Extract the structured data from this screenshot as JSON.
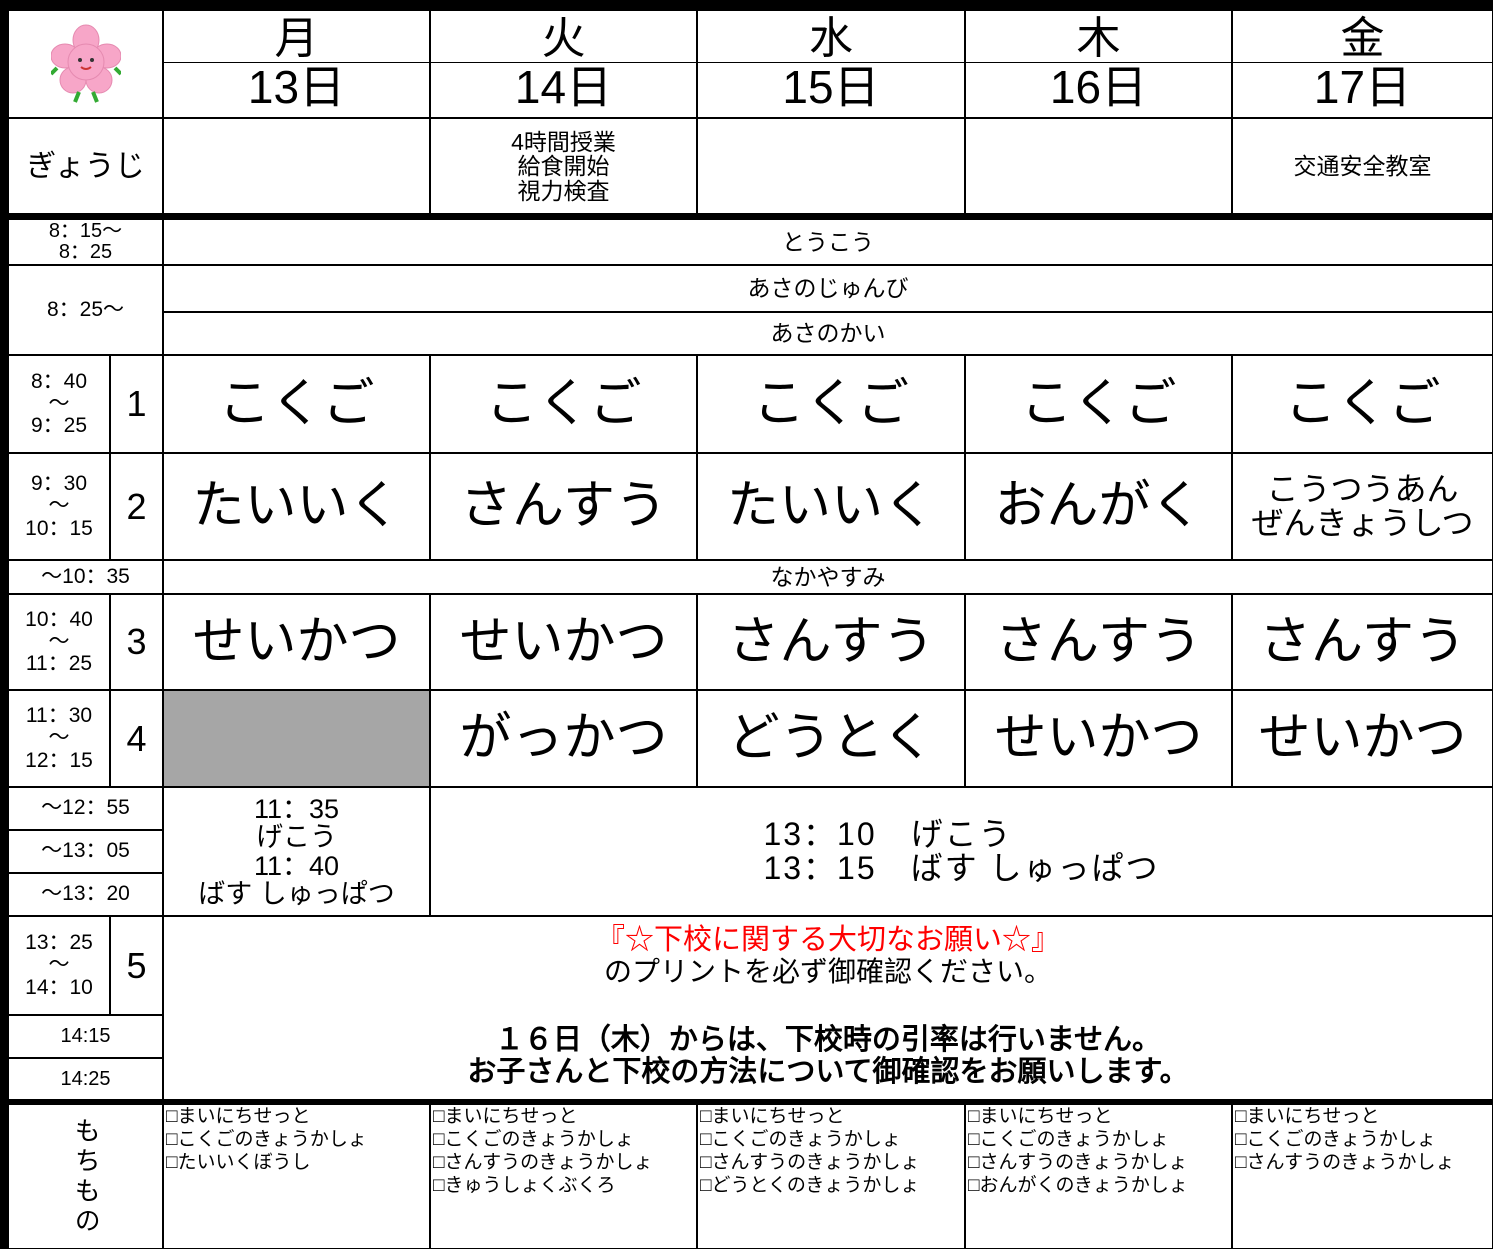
{
  "header": {
    "days": [
      {
        "day": "月",
        "date": "13日"
      },
      {
        "day": "火",
        "date": "14日"
      },
      {
        "day": "水",
        "date": "15日"
      },
      {
        "day": "木",
        "date": "16日"
      },
      {
        "day": "金",
        "date": "17日"
      }
    ]
  },
  "events": {
    "label": "ぎょうじ",
    "cells": [
      [],
      [
        "4時間授業",
        "給食開始",
        "視力検査"
      ],
      [],
      [],
      [
        "交通安全教室"
      ]
    ]
  },
  "arrival": {
    "time": [
      "8：15～",
      "8：25"
    ],
    "label": "とうこう"
  },
  "morning": {
    "time": "8：25～",
    "labels": [
      "あさのじゅんび",
      "あさのかい"
    ]
  },
  "periods": [
    {
      "time": [
        "8：40",
        "～",
        "9：25"
      ],
      "number": "1",
      "subjects": [
        "こくご",
        "こくご",
        "こくご",
        "こくご",
        "こくご"
      ]
    },
    {
      "time": [
        "9：30",
        "～",
        "10：15"
      ],
      "number": "2",
      "subjects": [
        "たいいく",
        "さんすう",
        "たいいく",
        "おんがく",
        [
          "こうつうあん",
          "ぜんきょうしつ"
        ]
      ]
    },
    {
      "time": [
        "10：40",
        "～",
        "11：25"
      ],
      "number": "3",
      "subjects": [
        "せいかつ",
        "せいかつ",
        "さんすう",
        "さんすう",
        "さんすう"
      ]
    },
    {
      "time": [
        "11：30",
        "～",
        "12：15"
      ],
      "number": "4",
      "subjects": [
        null,
        "がっかつ",
        "どうとく",
        "せいかつ",
        "せいかつ"
      ]
    }
  ],
  "break": {
    "time": "～10：35",
    "label": "なかやすみ"
  },
  "lunch": {
    "times": [
      "～12：55",
      "～13：05",
      "～13：20"
    ],
    "monday": [
      "11：35",
      "げこう",
      "11：40",
      "ばす しゅっぱつ"
    ],
    "others": [
      "13：10　げこう",
      "13：15　ばす しゅっぱつ"
    ]
  },
  "period5": {
    "time": [
      "13：25",
      "～",
      "14：10"
    ],
    "number": "5"
  },
  "dismissal_times": [
    "14:15",
    "14:25"
  ],
  "notice": {
    "title": "『☆下校に関する大切なお願い☆』",
    "lines": [
      "のプリントを必ず御確認ください。",
      "１６日（木）からは、下校時の引率は行いません。",
      "お子さんと下校の方法について御確認をお願いします。"
    ]
  },
  "belongings": {
    "label": "もちもの",
    "items": [
      [
        "□まいにちせっと",
        "□こくごのきょうかしょ",
        "□たいいくぼうし"
      ],
      [
        "□まいにちせっと",
        "□こくごのきょうかしょ",
        "□さんすうのきょうかしょ",
        "□きゅうしょくぶくろ"
      ],
      [
        "□まいにちせっと",
        "□こくごのきょうかしょ",
        "□さんすうのきょうかしょ",
        "□どうとくのきょうかしょ"
      ],
      [
        "□まいにちせっと",
        "□こくごのきょうかしょ",
        "□さんすうのきょうかしょ",
        "□おんがくのきょうかしょ"
      ],
      [
        "□まいにちせっと",
        "□こくごのきょうかしょ",
        "□さんすうのきょうかしょ"
      ]
    ]
  }
}
